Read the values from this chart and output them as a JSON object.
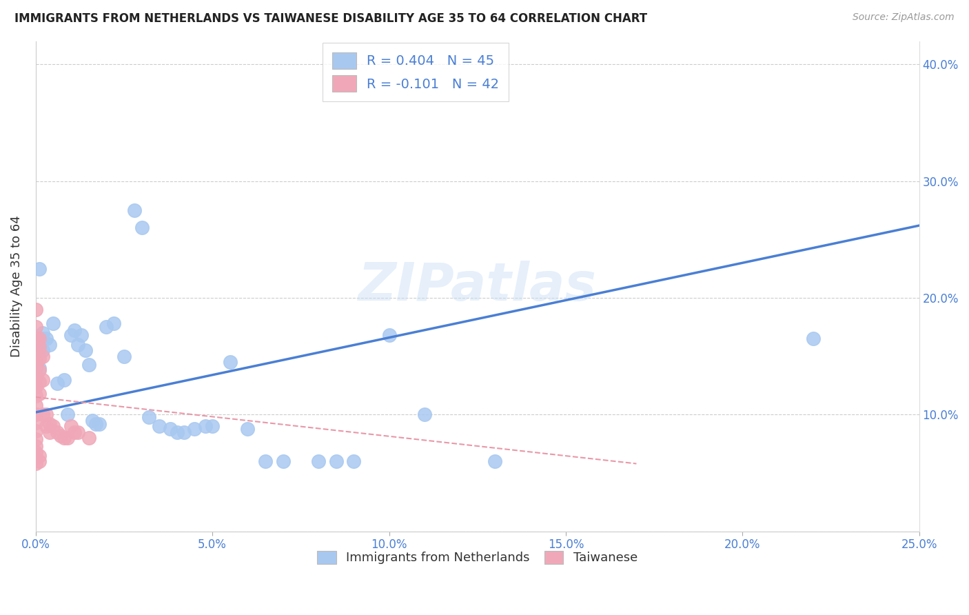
{
  "title": "IMMIGRANTS FROM NETHERLANDS VS TAIWANESE DISABILITY AGE 35 TO 64 CORRELATION CHART",
  "source": "Source: ZipAtlas.com",
  "ylabel_label": "Disability Age 35 to 64",
  "legend_label1": "Immigrants from Netherlands",
  "legend_label2": "Taiwanese",
  "r1": 0.404,
  "n1": 45,
  "r2": -0.101,
  "n2": 42,
  "xlim": [
    0.0,
    0.25
  ],
  "ylim": [
    0.0,
    0.42
  ],
  "xticks": [
    0.0,
    0.05,
    0.1,
    0.15,
    0.2,
    0.25
  ],
  "yticks": [
    0.0,
    0.1,
    0.2,
    0.3,
    0.4
  ],
  "ytick_labels": [
    "",
    "10.0%",
    "20.0%",
    "30.0%",
    "40.0%"
  ],
  "xtick_labels": [
    "0.0%",
    "5.0%",
    "10.0%",
    "15.0%",
    "20.0%",
    "25.0%"
  ],
  "color_blue": "#a8c8f0",
  "color_pink": "#f0a8b8",
  "line_blue": "#4a7fd4",
  "line_pink": "#e898a8",
  "watermark": "ZIPatlas",
  "blue_line_x0": 0.0,
  "blue_line_y0": 0.102,
  "blue_line_x1": 0.25,
  "blue_line_y1": 0.262,
  "pink_line_x0": 0.0,
  "pink_line_y0": 0.115,
  "pink_line_x1": 0.17,
  "pink_line_y1": 0.058,
  "blue_points_x": [
    0.001,
    0.001,
    0.001,
    0.002,
    0.002,
    0.002,
    0.003,
    0.004,
    0.005,
    0.006,
    0.008,
    0.009,
    0.01,
    0.011,
    0.012,
    0.013,
    0.014,
    0.015,
    0.016,
    0.017,
    0.018,
    0.02,
    0.022,
    0.025,
    0.028,
    0.03,
    0.032,
    0.035,
    0.038,
    0.04,
    0.042,
    0.045,
    0.048,
    0.05,
    0.055,
    0.06,
    0.065,
    0.07,
    0.08,
    0.085,
    0.09,
    0.1,
    0.11,
    0.22,
    0.13
  ],
  "blue_points_y": [
    0.225,
    0.155,
    0.14,
    0.17,
    0.165,
    0.155,
    0.165,
    0.16,
    0.178,
    0.127,
    0.13,
    0.1,
    0.168,
    0.172,
    0.16,
    0.168,
    0.155,
    0.143,
    0.095,
    0.092,
    0.092,
    0.175,
    0.178,
    0.15,
    0.275,
    0.26,
    0.098,
    0.09,
    0.088,
    0.085,
    0.085,
    0.088,
    0.09,
    0.09,
    0.145,
    0.088,
    0.06,
    0.06,
    0.06,
    0.06,
    0.06,
    0.168,
    0.1,
    0.165,
    0.06
  ],
  "pink_points_x": [
    0.0,
    0.0,
    0.0,
    0.0,
    0.0,
    0.0,
    0.0,
    0.0,
    0.0,
    0.0,
    0.0,
    0.0,
    0.0,
    0.0,
    0.0,
    0.0,
    0.0,
    0.0,
    0.001,
    0.001,
    0.001,
    0.001,
    0.001,
    0.001,
    0.001,
    0.001,
    0.002,
    0.002,
    0.002,
    0.003,
    0.003,
    0.004,
    0.004,
    0.005,
    0.006,
    0.007,
    0.008,
    0.009,
    0.01,
    0.011,
    0.012,
    0.015
  ],
  "pink_points_y": [
    0.19,
    0.175,
    0.165,
    0.155,
    0.148,
    0.14,
    0.132,
    0.124,
    0.116,
    0.108,
    0.1,
    0.093,
    0.086,
    0.079,
    0.073,
    0.068,
    0.063,
    0.058,
    0.165,
    0.158,
    0.148,
    0.138,
    0.128,
    0.118,
    0.065,
    0.06,
    0.15,
    0.13,
    0.1,
    0.1,
    0.09,
    0.092,
    0.085,
    0.09,
    0.085,
    0.082,
    0.08,
    0.08,
    0.09,
    0.085,
    0.085,
    0.08
  ]
}
